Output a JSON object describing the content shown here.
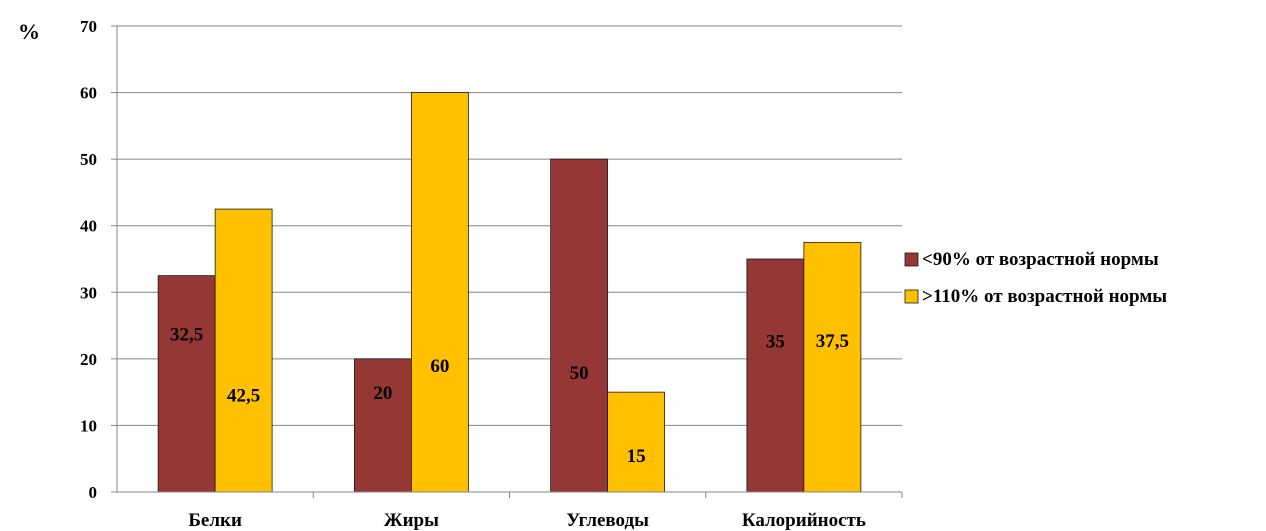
{
  "chart_data": {
    "type": "bar",
    "ylabel": "%",
    "xlabel": "",
    "ylim": [
      0,
      70
    ],
    "yticks": [
      0,
      10,
      20,
      30,
      40,
      50,
      60,
      70
    ],
    "grid": true,
    "legend_position": "right",
    "categories": [
      "Белки",
      "Жиры",
      "Углеводы",
      "Калорийность"
    ],
    "series": [
      {
        "name": "<90% от возрастной нормы",
        "color": "#953735",
        "values": [
          32.5,
          20,
          50,
          35
        ],
        "labels": [
          "32,5",
          "20",
          "50",
          "35"
        ]
      },
      {
        "name": ">110% от возрастной нормы",
        "color": "#FFC000",
        "values": [
          42.5,
          60,
          15,
          37.5
        ],
        "labels": [
          "42,5",
          "60",
          "15",
          "37,5"
        ]
      }
    ]
  }
}
